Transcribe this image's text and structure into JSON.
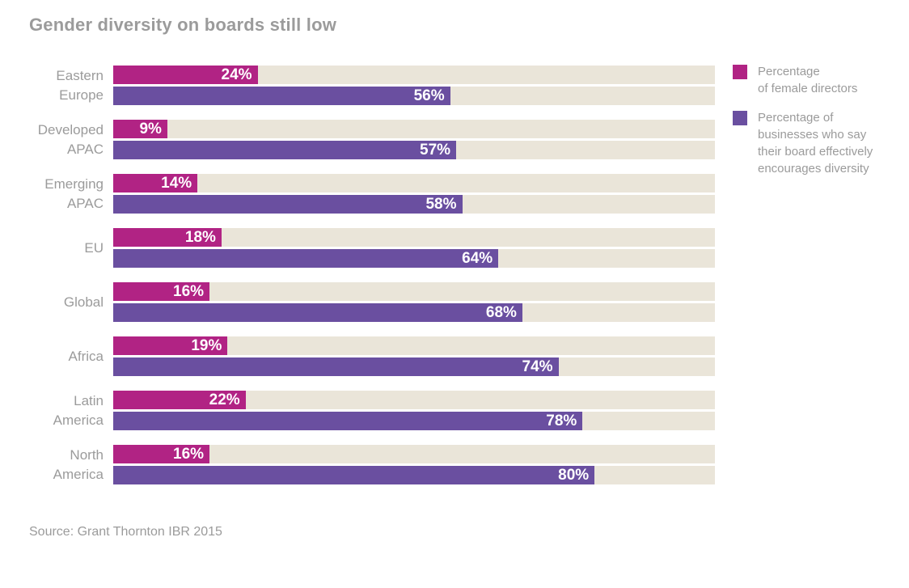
{
  "title": "Gender diversity on boards still low",
  "source": "Source: Grant Thornton IBR 2015",
  "colors": {
    "female": "#b12384",
    "business": "#6a4fa0",
    "track": "#eae5d9",
    "title_text": "#9b9b9b",
    "label_text": "#9b9b9b",
    "value_text": "#ffffff"
  },
  "legend": [
    {
      "label": "Percentage\nof female directors",
      "color_key": "female"
    },
    {
      "label": "Percentage of\nbusinesses who say\ntheir board effectively\nencourages diversity",
      "color_key": "business"
    }
  ],
  "chart_data": {
    "type": "bar",
    "orientation": "horizontal",
    "title": "Gender diversity on boards still low",
    "categories": [
      "Eastern\nEurope",
      "Developed\nAPAC",
      "Emerging\nAPAC",
      "EU",
      "Global",
      "Africa",
      "Latin\nAmerica",
      "North\nAmerica"
    ],
    "series": [
      {
        "name": "Percentage of female directors",
        "color_key": "female",
        "values": [
          24,
          9,
          14,
          18,
          16,
          19,
          22,
          16
        ]
      },
      {
        "name": "Percentage of businesses who say their board effectively encourages diversity",
        "color_key": "business",
        "values": [
          56,
          57,
          58,
          64,
          68,
          74,
          78,
          80
        ]
      }
    ],
    "value_suffix": "%",
    "xlim": [
      0,
      100
    ],
    "grid": false,
    "legend_position": "right",
    "source": "Source: Grant Thornton IBR 2015"
  }
}
